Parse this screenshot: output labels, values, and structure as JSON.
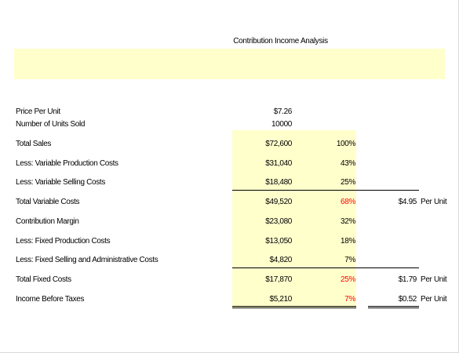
{
  "title": "Contribution Income Analysis",
  "colors": {
    "highlight": "#ffffcc",
    "negative": "#ff0000",
    "text": "#000000"
  },
  "inputs": [
    {
      "label": "Price Per Unit",
      "value": "$7.26"
    },
    {
      "label": "Number of Units Sold",
      "value": "10000"
    }
  ],
  "rows": [
    {
      "label": "Total Sales",
      "amount": "$72,600",
      "percent": "100%",
      "per_unit": "",
      "per_unit_label": ""
    },
    {
      "label": "Less: Variable Production Costs",
      "amount": "$31,040",
      "percent": "43%",
      "per_unit": "",
      "per_unit_label": ""
    },
    {
      "label": "Less: Variable Selling Costs",
      "amount": "$18,480",
      "percent": "25%",
      "per_unit": "",
      "per_unit_label": ""
    },
    {
      "label": "Total Variable Costs",
      "amount": "$49,520",
      "percent": "68%",
      "per_unit": "$4.95",
      "per_unit_label": "Per Unit"
    },
    {
      "label": "Contribution Margin",
      "amount": "$23,080",
      "percent": "32%",
      "per_unit": "",
      "per_unit_label": ""
    },
    {
      "label": "Less: Fixed Production Costs",
      "amount": "$13,050",
      "percent": "18%",
      "per_unit": "",
      "per_unit_label": ""
    },
    {
      "label": "Less: Fixed Selling and Administrative Costs",
      "amount": "$4,820",
      "percent": "7%",
      "per_unit": "",
      "per_unit_label": ""
    },
    {
      "label": "Total Fixed Costs",
      "amount": "$17,870",
      "percent": "25%",
      "per_unit": "$1.79",
      "per_unit_label": "Per Unit"
    },
    {
      "label": "Income Before Taxes",
      "amount": "$5,210",
      "percent": "7%",
      "per_unit": "$0.52",
      "per_unit_label": "Per Unit"
    }
  ]
}
